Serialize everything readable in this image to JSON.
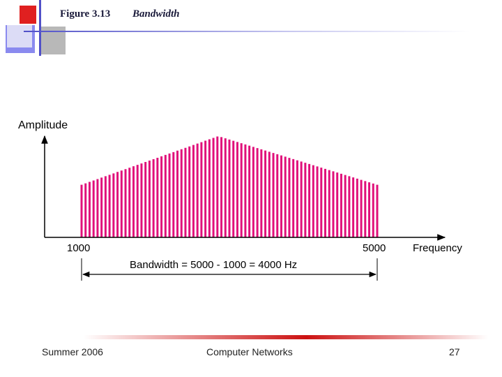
{
  "slide": {
    "figure_label": "Figure 3.13",
    "figure_caption": "Bandwidth"
  },
  "diagram": {
    "y_axis_label": "Amplitude",
    "x_axis_label": "Frequency",
    "low_freq_label": "1000",
    "high_freq_label": "5000",
    "bandwidth_label": "Bandwidth = 5000 - 1000 = 4000 Hz",
    "bar_color": "#e0107a",
    "spectrum": {
      "start_hz": 1000,
      "peak_hz": 2850,
      "end_hz": 5000,
      "edge_amplitude": 0.52,
      "peak_amplitude": 1.0,
      "line_count": 75
    }
  },
  "footer": {
    "left": "Summer 2006",
    "center": "Computer Networks",
    "right": "27"
  },
  "colors": {
    "accent_red": "#cc1111",
    "accent_blue": "#6a6adf",
    "accent_gray": "#b0b0b0"
  }
}
